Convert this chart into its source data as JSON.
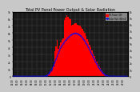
{
  "title": "Total PV Panel Power Output & Solar Radiation",
  "bg_color": "#c8c8c8",
  "plot_bg_color": "#1a1a1a",
  "bar_color": "#ff0000",
  "line_color": "#0000ff",
  "grid_color": "#555555",
  "n_bars": 96,
  "bar_heights": [
    0,
    0,
    0,
    0,
    0,
    0,
    0,
    0,
    0,
    0,
    0,
    0,
    0,
    0,
    0,
    0,
    0,
    0,
    0,
    0,
    0,
    0,
    0,
    0,
    0,
    0,
    5,
    20,
    60,
    150,
    300,
    500,
    700,
    900,
    1400,
    2000,
    2600,
    3200,
    3800,
    4300,
    4700,
    5000,
    5300,
    5600,
    5900,
    6200,
    6500,
    6700,
    6900,
    7100,
    7200,
    7300,
    7400,
    7350,
    7200,
    7100,
    7000,
    6800,
    6600,
    6300,
    6000,
    5600,
    5200,
    4800,
    4400,
    4000,
    3600,
    3200,
    2800,
    2400,
    2000,
    1700,
    1400,
    1100,
    850,
    620,
    420,
    270,
    150,
    70,
    25,
    5,
    0,
    0,
    0,
    0,
    0,
    0,
    0,
    0,
    0,
    0,
    0,
    0,
    0,
    0
  ],
  "spike_bars": [
    35,
    36,
    37,
    43,
    44,
    45,
    46,
    47,
    48
  ],
  "spike_vals": [
    3500,
    4200,
    5000,
    7800,
    8200,
    8500,
    8300,
    8100,
    7900
  ],
  "solar_rad": [
    0,
    0,
    0,
    0,
    0,
    0,
    0,
    0,
    0,
    0,
    0,
    0,
    0,
    0,
    0,
    0,
    0,
    0,
    0,
    0,
    0,
    0,
    0,
    0,
    0,
    0,
    1,
    3,
    8,
    18,
    35,
    60,
    90,
    120,
    165,
    210,
    260,
    310,
    360,
    405,
    445,
    475,
    505,
    530,
    555,
    575,
    600,
    615,
    630,
    645,
    655,
    663,
    668,
    665,
    658,
    648,
    635,
    618,
    598,
    572,
    545,
    515,
    482,
    448,
    412,
    375,
    338,
    300,
    263,
    226,
    190,
    158,
    128,
    100,
    76,
    54,
    35,
    20,
    10,
    4,
    1,
    0,
    0,
    0,
    0,
    0,
    0,
    0,
    0,
    0,
    0,
    0,
    0,
    0,
    0,
    0
  ],
  "xlim": [
    0,
    96
  ],
  "ylim_left": [
    0,
    9000
  ],
  "ylim_right": [
    0,
    1000
  ],
  "yticks_left": [
    0,
    1000,
    2000,
    3000,
    4000,
    5000,
    6000,
    7000,
    8000,
    9000
  ],
  "ytick_labels_left": [
    "0",
    "1k",
    "2k",
    "3k",
    "4k",
    "5k",
    "6k",
    "7k",
    "8k",
    "9k"
  ],
  "yticks_right": [
    0,
    100,
    200,
    300,
    400,
    500,
    600,
    700,
    800,
    900,
    1000
  ],
  "ytick_labels_right": [
    "0",
    "1h",
    "2h",
    "3h",
    "4h",
    "5h",
    "6h",
    "7h",
    "8h",
    "9h",
    "1k"
  ],
  "xtick_step": 4,
  "legend_labels": [
    "PV Power (W)",
    "Solar Rad (W/m2)"
  ],
  "title_fontsize": 3.5,
  "tick_fontsize": 2.2
}
